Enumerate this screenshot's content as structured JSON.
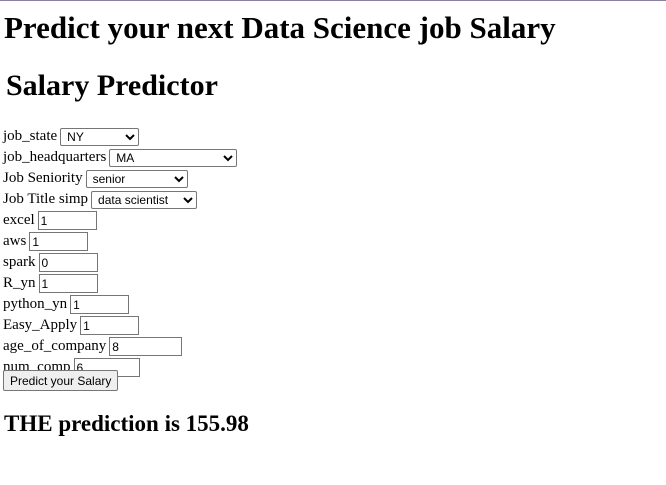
{
  "header": {
    "title": "Predict your next Data Science job Salary",
    "subtitle": "Salary Predictor"
  },
  "form": {
    "job_state": {
      "label": "job_state",
      "selected": "NY"
    },
    "job_headquarters": {
      "label": "job_headquarters",
      "selected": "MA"
    },
    "job_seniority": {
      "label": "Job Seniority",
      "selected": "senior"
    },
    "job_title_simp": {
      "label": "Job Title simp",
      "selected": "data scientist"
    },
    "excel": {
      "label": "excel",
      "value": "1"
    },
    "aws": {
      "label": "aws",
      "value": "1"
    },
    "spark": {
      "label": "spark",
      "value": "0"
    },
    "r_yn": {
      "label": "R_yn",
      "value": "1"
    },
    "python_yn": {
      "label": "python_yn",
      "value": "1"
    },
    "easy_apply": {
      "label": "Easy_Apply",
      "value": "1"
    },
    "age_of_company": {
      "label": "age_of_company",
      "value": "8"
    },
    "num_comp": {
      "label": "num_comp",
      "value": "6"
    }
  },
  "submit_label": "Predict your Salary",
  "result_text": "THE prediction is 155.98"
}
